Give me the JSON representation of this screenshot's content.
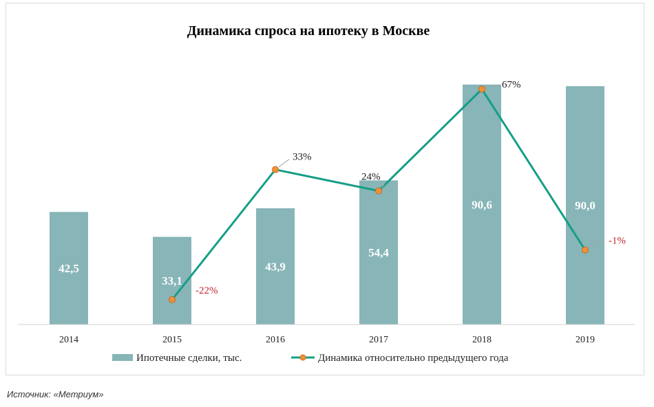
{
  "chart_data": {
    "type": "bar",
    "title": "Динамика спроса на ипотеку в Москве",
    "categories": [
      "2014",
      "2015",
      "2016",
      "2017",
      "2018",
      "2019"
    ],
    "series": [
      {
        "name": "Ипотечные сделки, тыс.",
        "type": "bar",
        "values": [
          42.5,
          33.1,
          43.9,
          54.4,
          90.6,
          90.0
        ],
        "labels": [
          "42,5",
          "33,1",
          "43,9",
          "54,4",
          "90,6",
          "90,0"
        ],
        "color": "#87b5b8"
      },
      {
        "name": "Динамика относительно предыдущего года",
        "type": "line",
        "values": [
          null,
          -22,
          33,
          24,
          67,
          -1
        ],
        "labels": [
          "",
          "-22%",
          "33%",
          "24%",
          "67%",
          "-1%"
        ],
        "color": "#149e87",
        "marker_color": "#f0913a"
      }
    ],
    "colors": {
      "positive_label": "#222222",
      "negative_label": "#c0262c"
    },
    "legend": "bottom",
    "grid": false
  },
  "source": "Источник: «Метриум»"
}
